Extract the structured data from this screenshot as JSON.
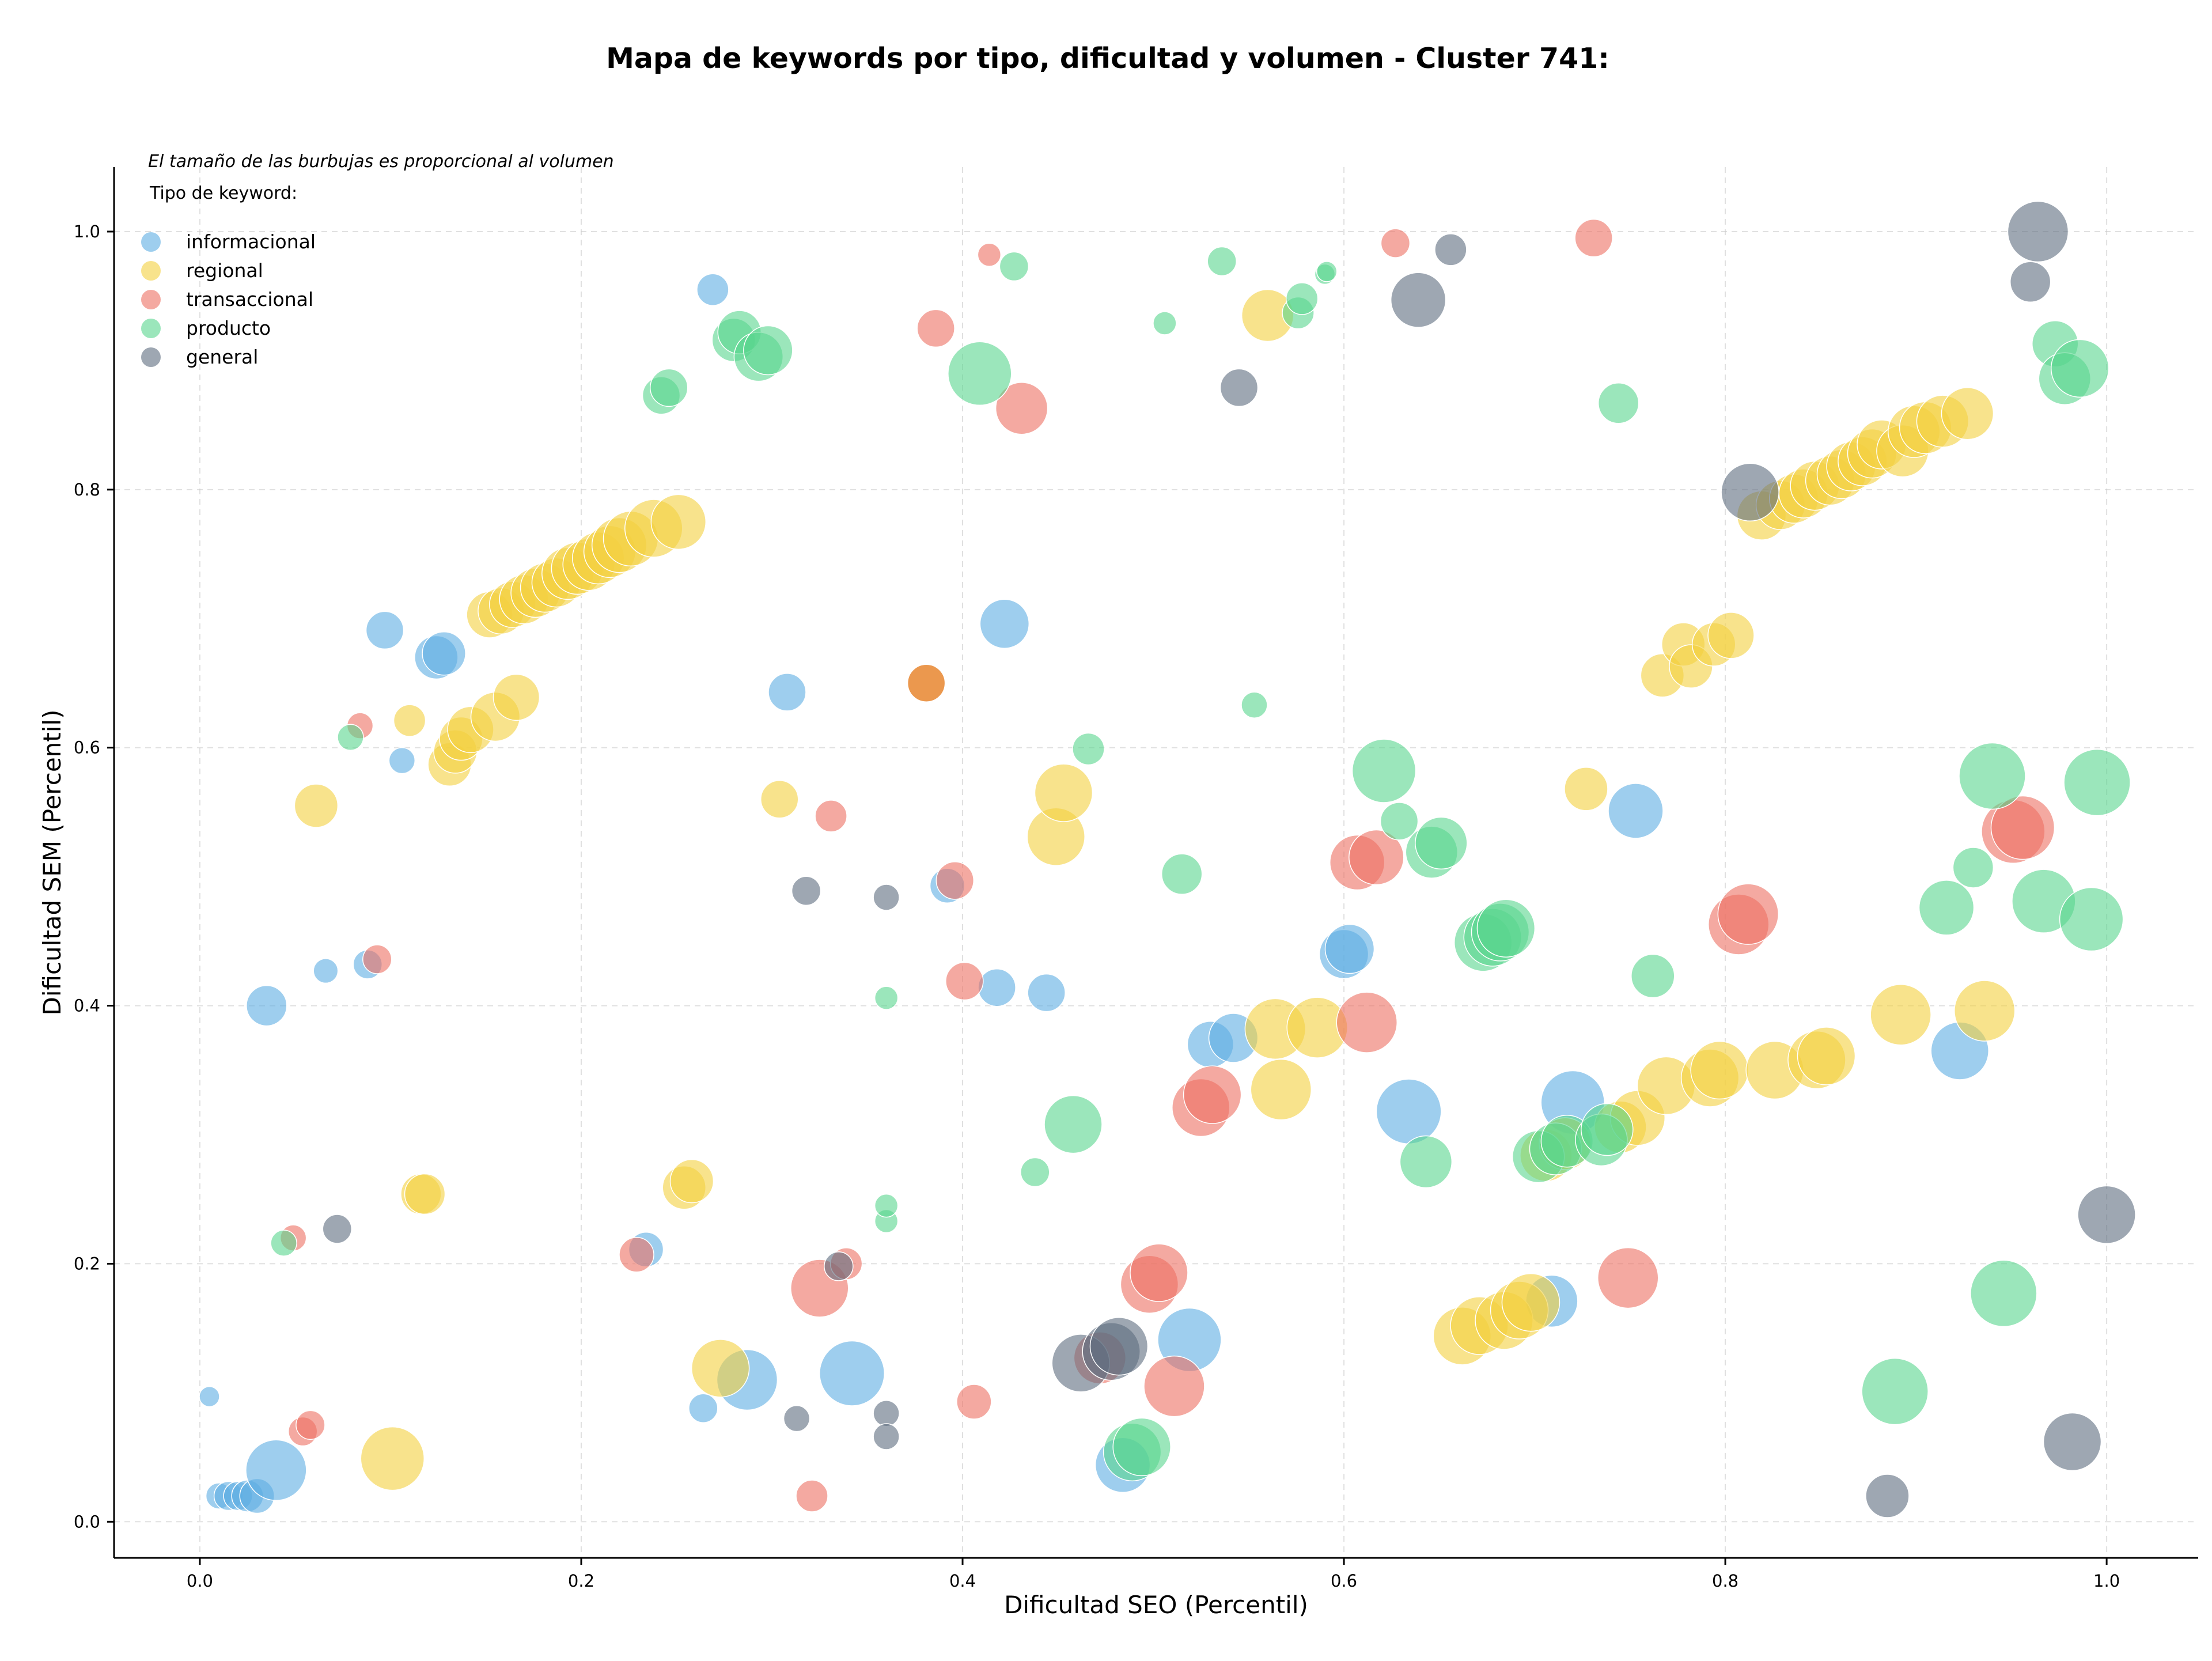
{
  "chart_data": {
    "type": "scatter",
    "title": "Mapa de keywords por tipo, dificultad y volumen - Cluster 741:",
    "xlabel": "Dificultad SEO (Percentil)",
    "ylabel": "Dificultad SEM (Percentil)",
    "note": "El tamaño de las burbujas es proporcional al volumen",
    "legend_title": "Tipo de keyword:",
    "legend_position": "top-left",
    "grid": true,
    "xlim": [
      -0.045,
      1.048
    ],
    "ylim": [
      -0.028,
      1.05
    ],
    "xticks": [
      "0.0",
      "0.2",
      "0.4",
      "0.6",
      "0.8",
      "1.0"
    ],
    "yticks": [
      "0.0",
      "0.2",
      "0.4",
      "0.6",
      "0.8",
      "1.0"
    ],
    "series": [
      {
        "name": "informacional",
        "color": "#5dade2",
        "points": [
          [
            0.005,
            0.097,
            14
          ],
          [
            0.01,
            0.02,
            18
          ],
          [
            0.015,
            0.02,
            20
          ],
          [
            0.02,
            0.02,
            20
          ],
          [
            0.025,
            0.02,
            22
          ],
          [
            0.03,
            0.02,
            24
          ],
          [
            0.04,
            0.04,
            42
          ],
          [
            0.035,
            0.4,
            28
          ],
          [
            0.066,
            0.427,
            17
          ],
          [
            0.088,
            0.432,
            20
          ],
          [
            0.097,
            0.691,
            26
          ],
          [
            0.106,
            0.59,
            18
          ],
          [
            0.124,
            0.67,
            30
          ],
          [
            0.128,
            0.673,
            30
          ],
          [
            0.234,
            0.211,
            24
          ],
          [
            0.269,
            0.955,
            22
          ],
          [
            0.264,
            0.088,
            20
          ],
          [
            0.287,
            0.11,
            42
          ],
          [
            0.308,
            0.643,
            26
          ],
          [
            0.342,
            0.115,
            45
          ],
          [
            0.392,
            0.493,
            24
          ],
          [
            0.418,
            0.414,
            26
          ],
          [
            0.422,
            0.696,
            34
          ],
          [
            0.444,
            0.41,
            26
          ],
          [
            0.484,
            0.044,
            38
          ],
          [
            0.519,
            0.141,
            44
          ],
          [
            0.53,
            0.37,
            32
          ],
          [
            0.542,
            0.375,
            34
          ],
          [
            0.6,
            0.44,
            34
          ],
          [
            0.603,
            0.444,
            34
          ],
          [
            0.634,
            0.318,
            45
          ],
          [
            0.709,
            0.171,
            36
          ],
          [
            0.72,
            0.325,
            44
          ],
          [
            0.753,
            0.551,
            38
          ],
          [
            0.923,
            0.365,
            40
          ]
        ]
      },
      {
        "name": "regional",
        "color": "#f4d03f",
        "points": [
          [
            0.061,
            0.555,
            30
          ],
          [
            0.101,
            0.049,
            44
          ],
          [
            0.11,
            0.621,
            22
          ],
          [
            0.116,
            0.254,
            28
          ],
          [
            0.118,
            0.254,
            28
          ],
          [
            0.131,
            0.587,
            30
          ],
          [
            0.134,
            0.597,
            30
          ],
          [
            0.137,
            0.607,
            30
          ],
          [
            0.142,
            0.614,
            32
          ],
          [
            0.155,
            0.624,
            34
          ],
          [
            0.166,
            0.639,
            32
          ],
          [
            0.152,
            0.703,
            32
          ],
          [
            0.158,
            0.706,
            32
          ],
          [
            0.164,
            0.711,
            32
          ],
          [
            0.17,
            0.715,
            34
          ],
          [
            0.176,
            0.72,
            34
          ],
          [
            0.181,
            0.724,
            34
          ],
          [
            0.187,
            0.728,
            34
          ],
          [
            0.193,
            0.735,
            36
          ],
          [
            0.198,
            0.739,
            36
          ],
          [
            0.204,
            0.742,
            36
          ],
          [
            0.209,
            0.747,
            36
          ],
          [
            0.215,
            0.752,
            36
          ],
          [
            0.22,
            0.757,
            38
          ],
          [
            0.226,
            0.762,
            38
          ],
          [
            0.238,
            0.77,
            40
          ],
          [
            0.251,
            0.775,
            38
          ],
          [
            0.254,
            0.259,
            30
          ],
          [
            0.258,
            0.264,
            30
          ],
          [
            0.273,
            0.119,
            40
          ],
          [
            0.304,
            0.56,
            26
          ],
          [
            0.449,
            0.531,
            40
          ],
          [
            0.453,
            0.565,
            40
          ],
          [
            0.56,
            0.935,
            36
          ],
          [
            0.567,
            0.335,
            42
          ],
          [
            0.564,
            0.382,
            42
          ],
          [
            0.586,
            0.383,
            42
          ],
          [
            0.662,
            0.144,
            40
          ],
          [
            0.671,
            0.152,
            40
          ],
          [
            0.684,
            0.156,
            40
          ],
          [
            0.692,
            0.164,
            40
          ],
          [
            0.698,
            0.17,
            40
          ],
          [
            0.706,
            0.284,
            36
          ],
          [
            0.716,
            0.293,
            36
          ],
          [
            0.745,
            0.306,
            36
          ],
          [
            0.754,
            0.313,
            38
          ],
          [
            0.769,
            0.338,
            40
          ],
          [
            0.792,
            0.344,
            40
          ],
          [
            0.797,
            0.35,
            40
          ],
          [
            0.826,
            0.35,
            40
          ],
          [
            0.848,
            0.358,
            40
          ],
          [
            0.853,
            0.361,
            40
          ],
          [
            0.892,
            0.393,
            42
          ],
          [
            0.936,
            0.396,
            42
          ],
          [
            0.727,
            0.568,
            30
          ],
          [
            0.767,
            0.656,
            30
          ],
          [
            0.778,
            0.68,
            30
          ],
          [
            0.782,
            0.663,
            30
          ],
          [
            0.794,
            0.68,
            30
          ],
          [
            0.803,
            0.687,
            32
          ],
          [
            0.819,
            0.78,
            34
          ],
          [
            0.829,
            0.788,
            34
          ],
          [
            0.836,
            0.793,
            34
          ],
          [
            0.841,
            0.797,
            34
          ],
          [
            0.847,
            0.803,
            34
          ],
          [
            0.855,
            0.807,
            34
          ],
          [
            0.861,
            0.812,
            34
          ],
          [
            0.866,
            0.818,
            34
          ],
          [
            0.872,
            0.822,
            34
          ],
          [
            0.877,
            0.828,
            34
          ],
          [
            0.882,
            0.835,
            34
          ],
          [
            0.893,
            0.83,
            36
          ],
          [
            0.899,
            0.845,
            36
          ],
          [
            0.905,
            0.848,
            36
          ],
          [
            0.914,
            0.853,
            36
          ],
          [
            0.927,
            0.859,
            36
          ]
        ]
      },
      {
        "name": "transaccional",
        "color": "#ec7063",
        "points": [
          [
            0.049,
            0.22,
            18
          ],
          [
            0.054,
            0.07,
            20
          ],
          [
            0.058,
            0.075,
            20
          ],
          [
            0.084,
            0.617,
            18
          ],
          [
            0.093,
            0.436,
            20
          ],
          [
            0.229,
            0.207,
            24
          ],
          [
            0.321,
            0.02,
            22
          ],
          [
            0.325,
            0.181,
            40
          ],
          [
            0.331,
            0.547,
            22
          ],
          [
            0.339,
            0.2,
            22
          ],
          [
            0.386,
            0.925,
            26
          ],
          [
            0.396,
            0.497,
            26
          ],
          [
            0.401,
            0.419,
            26
          ],
          [
            0.406,
            0.093,
            24
          ],
          [
            0.414,
            0.982,
            16
          ],
          [
            0.431,
            0.863,
            36
          ],
          [
            0.472,
            0.127,
            36
          ],
          [
            0.498,
            0.184,
            40
          ],
          [
            0.503,
            0.193,
            40
          ],
          [
            0.511,
            0.105,
            42
          ],
          [
            0.525,
            0.321,
            40
          ],
          [
            0.531,
            0.331,
            40
          ],
          [
            0.607,
            0.511,
            38
          ],
          [
            0.617,
            0.515,
            38
          ],
          [
            0.612,
            0.387,
            42
          ],
          [
            0.627,
            0.991,
            20
          ],
          [
            0.731,
            0.995,
            26
          ],
          [
            0.749,
            0.189,
            42
          ],
          [
            0.807,
            0.463,
            42
          ],
          [
            0.812,
            0.471,
            42
          ],
          [
            0.951,
            0.535,
            44
          ],
          [
            0.956,
            0.538,
            44
          ]
        ]
      },
      {
        "name": "producto",
        "color": "#58d68d",
        "points": [
          [
            0.044,
            0.216,
            18
          ],
          [
            0.079,
            0.608,
            18
          ],
          [
            0.242,
            0.873,
            26
          ],
          [
            0.246,
            0.879,
            26
          ],
          [
            0.28,
            0.916,
            30
          ],
          [
            0.283,
            0.922,
            30
          ],
          [
            0.293,
            0.903,
            34
          ],
          [
            0.298,
            0.908,
            34
          ],
          [
            0.36,
            0.406,
            16
          ],
          [
            0.36,
            0.233,
            16
          ],
          [
            0.36,
            0.245,
            16
          ],
          [
            0.409,
            0.89,
            44
          ],
          [
            0.427,
            0.973,
            20
          ],
          [
            0.438,
            0.271,
            20
          ],
          [
            0.466,
            0.599,
            22
          ],
          [
            0.458,
            0.308,
            40
          ],
          [
            0.489,
            0.054,
            40
          ],
          [
            0.494,
            0.058,
            40
          ],
          [
            0.506,
            0.929,
            16
          ],
          [
            0.515,
            0.502,
            28
          ],
          [
            0.536,
            0.977,
            20
          ],
          [
            0.553,
            0.633,
            18
          ],
          [
            0.576,
            0.937,
            22
          ],
          [
            0.578,
            0.948,
            22
          ],
          [
            0.59,
            0.967,
            14
          ],
          [
            0.591,
            0.969,
            14
          ],
          [
            0.621,
            0.582,
            44
          ],
          [
            0.629,
            0.543,
            26
          ],
          [
            0.643,
            0.279,
            36
          ],
          [
            0.646,
            0.519,
            36
          ],
          [
            0.651,
            0.526,
            36
          ],
          [
            0.673,
            0.449,
            40
          ],
          [
            0.678,
            0.453,
            40
          ],
          [
            0.682,
            0.457,
            40
          ],
          [
            0.685,
            0.46,
            40
          ],
          [
            0.702,
            0.283,
            36
          ],
          [
            0.711,
            0.289,
            36
          ],
          [
            0.717,
            0.295,
            36
          ],
          [
            0.735,
            0.296,
            36
          ],
          [
            0.738,
            0.304,
            36
          ],
          [
            0.744,
            0.867,
            28
          ],
          [
            0.762,
            0.423,
            30
          ],
          [
            0.889,
            0.101,
            46
          ],
          [
            0.93,
            0.507,
            28
          ],
          [
            0.916,
            0.476,
            38
          ],
          [
            0.94,
            0.578,
            46
          ],
          [
            0.946,
            0.177,
            46
          ],
          [
            0.967,
            0.481,
            44
          ],
          [
            0.973,
            0.913,
            32
          ],
          [
            0.978,
            0.886,
            36
          ],
          [
            0.986,
            0.894,
            40
          ],
          [
            0.992,
            0.467,
            44
          ],
          [
            0.995,
            0.573,
            46
          ]
        ]
      },
      {
        "name": "general",
        "color": "#5d6d7e",
        "points": [
          [
            0.072,
            0.227,
            20
          ],
          [
            0.313,
            0.08,
            18
          ],
          [
            0.318,
            0.489,
            20
          ],
          [
            0.335,
            0.198,
            20
          ],
          [
            0.36,
            0.484,
            18
          ],
          [
            0.36,
            0.084,
            18
          ],
          [
            0.36,
            0.066,
            18
          ],
          [
            0.462,
            0.123,
            40
          ],
          [
            0.478,
            0.132,
            40
          ],
          [
            0.482,
            0.136,
            40
          ],
          [
            0.545,
            0.879,
            26
          ],
          [
            0.639,
            0.947,
            38
          ],
          [
            0.656,
            0.986,
            22
          ],
          [
            0.813,
            0.798,
            40
          ],
          [
            0.885,
            0.02,
            30
          ],
          [
            0.96,
            0.961,
            28
          ],
          [
            0.964,
            1.0,
            42
          ],
          [
            0.982,
            0.062,
            40
          ],
          [
            1.0,
            0.238,
            40
          ]
        ]
      }
    ],
    "extra_marks": [
      {
        "color": "#e67e22",
        "points": [
          [
            0.381,
            0.65,
            26
          ]
        ]
      }
    ]
  }
}
